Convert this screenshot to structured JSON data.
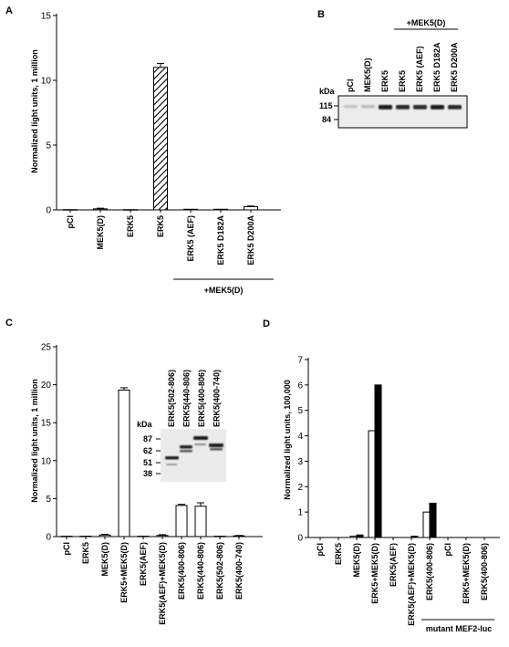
{
  "colors": {
    "ink": "#000000",
    "bar_fill": "#ffffff",
    "bar_solid": "#000000",
    "blot_bg": "#e9e9e9",
    "band": "#1a1a1a"
  },
  "panels": {
    "A": {
      "letter": "A",
      "ylabel": "Normalized light units,   1 million",
      "group_label": "+MEK5(D)"
    },
    "B": {
      "letter": "B",
      "kda_label": "kDa",
      "group_label": "+MEK5(D)",
      "lanes": [
        "pCI",
        "MEK5(D)",
        "ERK5",
        "ERK5",
        "ERK5 (AEF)",
        "ERK5 D182A",
        "ERK5 D200A"
      ],
      "markers": [
        "115",
        "84"
      ],
      "band_intensity": [
        0.18,
        0.22,
        0.95,
        0.9,
        0.88,
        0.95,
        0.9
      ]
    },
    "C": {
      "letter": "C",
      "ylabel": "Normalized light units,   1 million",
      "kda_label": "kDa",
      "inset_lanes": [
        "ERK5(502-806)",
        "ERK5(440-806)",
        "ERK5(400-806)",
        "ERK5(400-740)"
      ],
      "inset_markers": [
        "87",
        "62",
        "51",
        "38"
      ]
    },
    "D": {
      "letter": "D",
      "ylabel": "Normalized light units,   100,000",
      "group_label": "mutant MEF2-luc"
    }
  },
  "chart_data": [
    {
      "panel": "A",
      "type": "bar",
      "pattern": "hatched-for-ERK5+MEK5(D)",
      "categories": [
        "pCI",
        "MEK5(D)",
        "ERK5",
        "ERK5",
        "ERK5 (AEF)",
        "ERK5 D182A",
        "ERK5 D200A"
      ],
      "values": [
        0.02,
        0.08,
        0.02,
        11.0,
        0.05,
        0.05,
        0.25
      ],
      "errors": [
        0.0,
        0.05,
        0.0,
        0.3,
        0.0,
        0.0,
        0.05
      ],
      "ylim": [
        0,
        15
      ],
      "yticks": [
        0,
        5,
        10,
        15
      ],
      "ylabel": "Normalized light units,   1 million",
      "group_label": "+MEK5(D)"
    },
    {
      "panel": "C",
      "type": "bar",
      "categories": [
        "pCI",
        "ERK5",
        "MEK5(D)",
        "ERK5+MEK5(D)",
        "ERK5(AEF)",
        "ERK5(AEF)+MEK5(D)",
        "ERK5(400-806)",
        "ERK5(440-806)",
        "ERK5(502-806)",
        "ERK5(400-740)"
      ],
      "values": [
        0.05,
        0.05,
        0.2,
        19.3,
        0.05,
        0.15,
        4.1,
        4.0,
        0.05,
        0.1
      ],
      "errors": [
        0.0,
        0.0,
        0.1,
        0.3,
        0.0,
        0.1,
        0.15,
        0.45,
        0.0,
        0.05
      ],
      "ylim": [
        0,
        25
      ],
      "yticks": [
        0,
        5,
        10,
        15,
        20,
        25
      ],
      "ylabel": "Normalized light units,   1 million"
    },
    {
      "panel": "D",
      "type": "bar",
      "categories": [
        "pCI",
        "ERK5",
        "MEK5(D)",
        "ERK5+MEK5(D)",
        "ERK5(AEF)",
        "ERK5(AEF)+MEK5(D)",
        "ERK5(400-806)",
        "pCI",
        "ERK5+MEK5(D)",
        "ERK5(400-806)"
      ],
      "series": [
        {
          "values": [
            0.0,
            0.0,
            0.05,
            4.2,
            0.0,
            0.0,
            1.0,
            0.0,
            0.0,
            0.0
          ]
        },
        {
          "values": [
            0.0,
            0.0,
            0.1,
            6.0,
            0.0,
            0.05,
            1.35,
            0.0,
            0.0,
            0.0
          ]
        }
      ],
      "ylim": [
        0,
        7
      ],
      "yticks": [
        0,
        1,
        2,
        3,
        4,
        5,
        6,
        7
      ],
      "ylabel": "Normalized light units,   100,000",
      "group_label": "mutant MEF2-luc"
    }
  ]
}
